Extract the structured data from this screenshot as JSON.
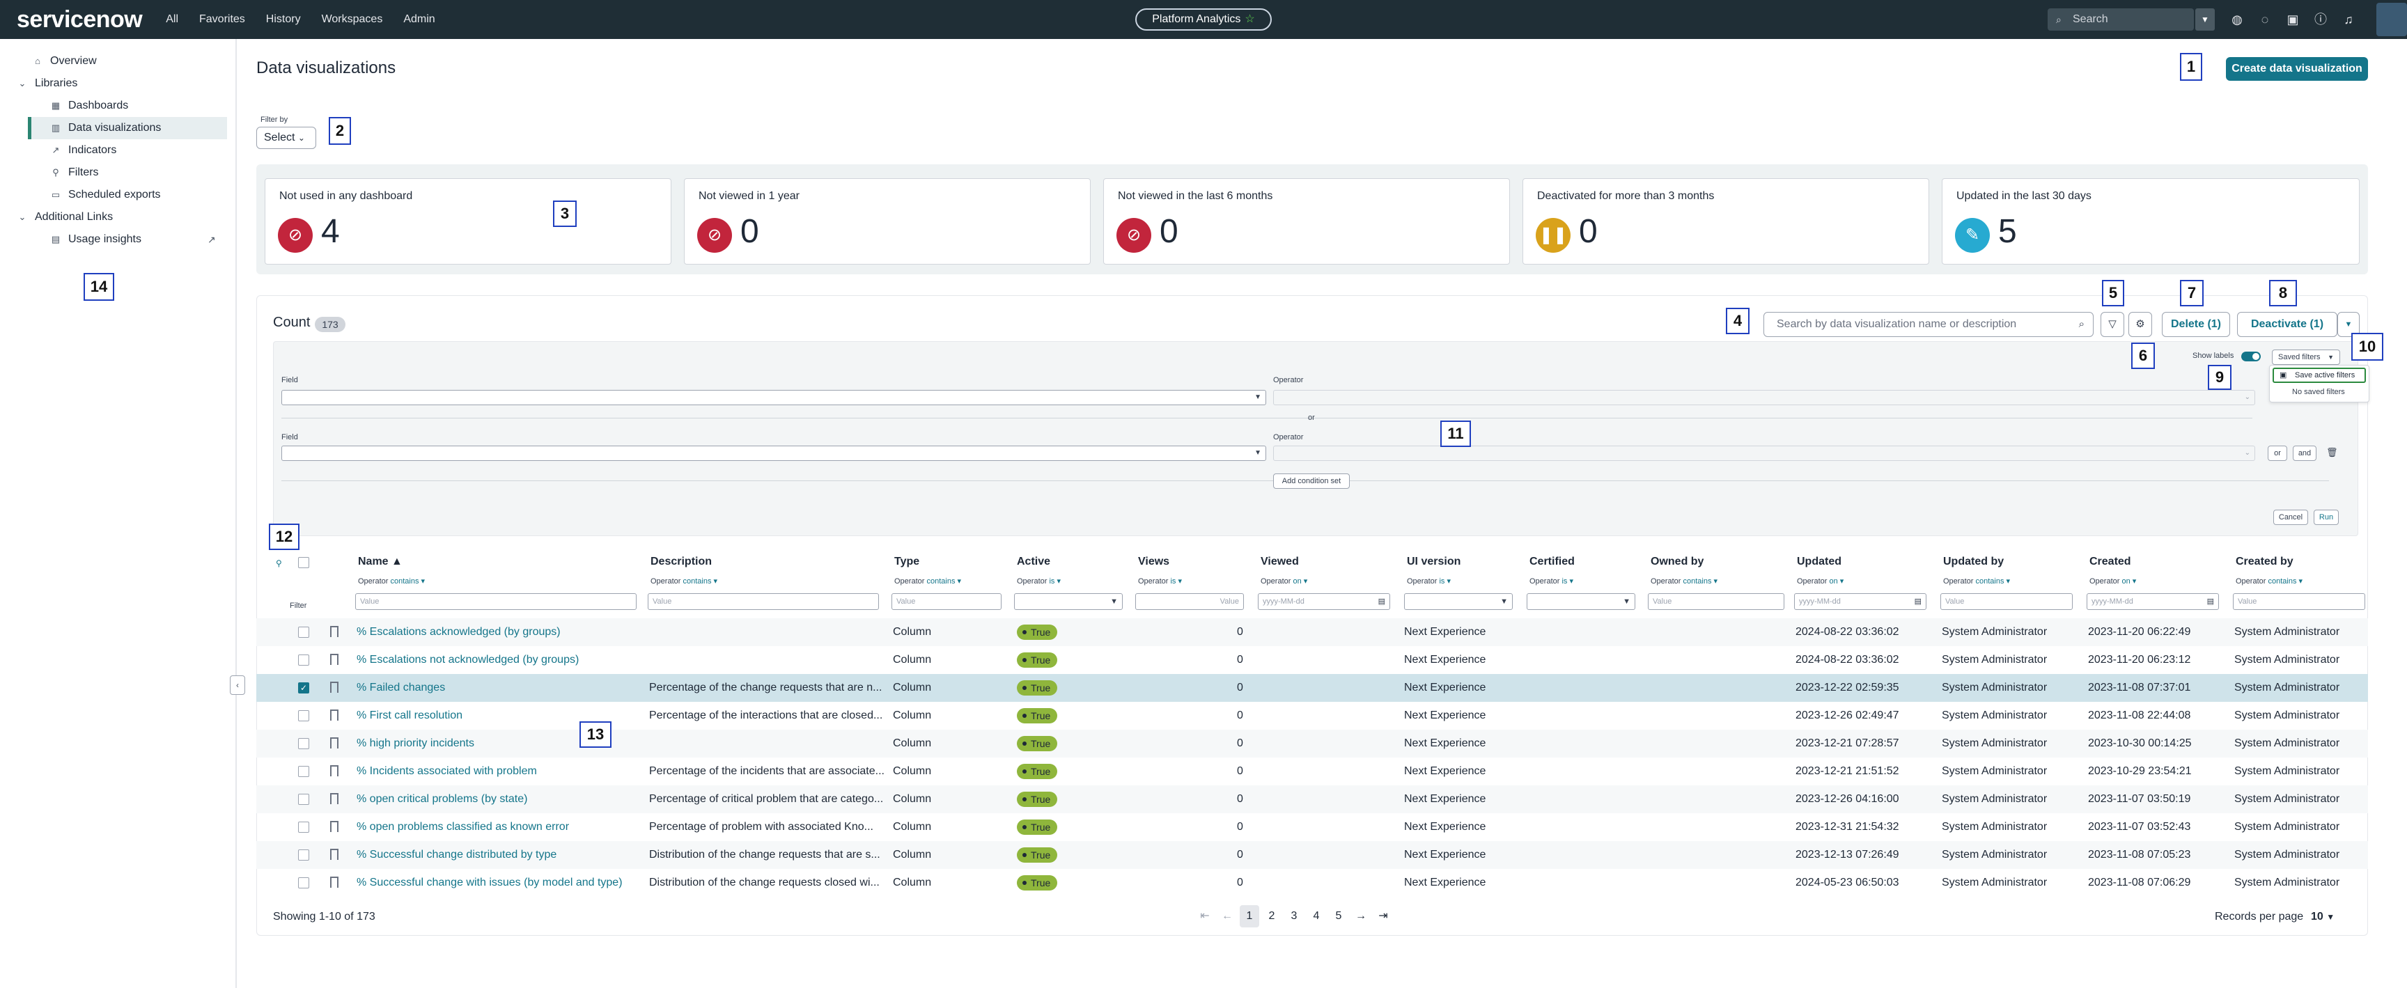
{
  "topbar": {
    "logo": "servicenow",
    "nav": [
      "All",
      "Favorites",
      "History",
      "Workspaces",
      "Admin"
    ],
    "scope": "Platform Analytics",
    "search_placeholder": "Search"
  },
  "sidebar": {
    "overview": "Overview",
    "libraries": "Libraries",
    "library_items": [
      "Dashboards",
      "Data visualizations",
      "Indicators",
      "Filters",
      "Scheduled exports"
    ],
    "additional_links": "Additional Links",
    "usage_insights": "Usage insights"
  },
  "page": {
    "title": "Data visualizations",
    "create_button": "Create data visualization",
    "filter_by_label": "Filter by",
    "filter_by_value": "Select"
  },
  "cards": [
    {
      "label": "Not used in any dashboard",
      "value": "4",
      "color": "#c2253c"
    },
    {
      "label": "Not viewed in 1 year",
      "value": "0",
      "color": "#c2253c"
    },
    {
      "label": "Not viewed in the last 6 months",
      "value": "0",
      "color": "#c2253c"
    },
    {
      "label": "Deactivated for more than 3 months",
      "value": "0",
      "color": "#d9a21b"
    },
    {
      "label": "Updated in the last 30 days",
      "value": "5",
      "color": "#27aad1"
    }
  ],
  "toolbar": {
    "count_label": "Count",
    "count_value": "173",
    "search_placeholder": "Search by data visualization name or description",
    "delete_label": "Delete (1)",
    "deactivate_label": "Deactivate (1)"
  },
  "filter_panel": {
    "field_label": "Field",
    "operator_label": "Operator",
    "or_label": "or",
    "or_button": "or",
    "and_button": "and",
    "add_condition_set": "Add condition set",
    "show_labels": "Show labels",
    "saved_filters": "Saved filters",
    "save_active_filters": "Save active filters",
    "no_saved_filters": "No saved filters",
    "cancel": "Cancel",
    "run": "Run"
  },
  "annotations": [
    "1",
    "2",
    "3",
    "4",
    "5",
    "6",
    "7",
    "8",
    "9",
    "10",
    "11",
    "12",
    "13",
    "14"
  ],
  "table": {
    "filter_label": "Filter",
    "operator_label": "Operator",
    "value_placeholder": "Value",
    "date_placeholder": "yyyy-MM-dd",
    "columns": [
      {
        "label": "Name ▲",
        "op": "contains"
      },
      {
        "label": "Description",
        "op": "contains"
      },
      {
        "label": "Type",
        "op": "contains"
      },
      {
        "label": "Active",
        "op": "is"
      },
      {
        "label": "Views",
        "op": "is"
      },
      {
        "label": "Viewed",
        "op": "on"
      },
      {
        "label": "UI version",
        "op": "is"
      },
      {
        "label": "Certified",
        "op": "is"
      },
      {
        "label": "Owned by",
        "op": "contains"
      },
      {
        "label": "Updated",
        "op": "on"
      },
      {
        "label": "Updated by",
        "op": "contains"
      },
      {
        "label": "Created",
        "op": "on"
      },
      {
        "label": "Created by",
        "op": "contains"
      }
    ],
    "rows": [
      {
        "name": "% Escalations acknowledged (by groups)",
        "desc": "",
        "type": "Column",
        "active": "True",
        "views": "0",
        "ui": "Next Experience",
        "updated": "2024-08-22 03:36:02",
        "updated_by": "System Administrator",
        "created": "2023-11-20 06:22:49",
        "created_by": "System Administrator"
      },
      {
        "name": "% Escalations not acknowledged (by groups)",
        "desc": "",
        "type": "Column",
        "active": "True",
        "views": "0",
        "ui": "Next Experience",
        "updated": "2024-08-22 03:36:02",
        "updated_by": "System Administrator",
        "created": "2023-11-20 06:23:12",
        "created_by": "System Administrator"
      },
      {
        "name": "% Failed changes",
        "desc": "Percentage of the change requests that are n...",
        "type": "Column",
        "active": "True",
        "views": "0",
        "ui": "Next Experience",
        "updated": "2023-12-22 02:59:35",
        "updated_by": "System Administrator",
        "created": "2023-11-08 07:37:01",
        "created_by": "System Administrator"
      },
      {
        "name": "% First call resolution",
        "desc": "Percentage of the interactions that are closed...",
        "type": "Column",
        "active": "True",
        "views": "0",
        "ui": "Next Experience",
        "updated": "2023-12-26 02:49:47",
        "updated_by": "System Administrator",
        "created": "2023-11-08 22:44:08",
        "created_by": "System Administrator"
      },
      {
        "name": "% high priority incidents",
        "desc": "",
        "type": "Column",
        "active": "True",
        "views": "0",
        "ui": "Next Experience",
        "updated": "2023-12-21 07:28:57",
        "updated_by": "System Administrator",
        "created": "2023-10-30 00:14:25",
        "created_by": "System Administrator"
      },
      {
        "name": "% Incidents associated with problem",
        "desc": "Percentage of the incidents that are associate...",
        "type": "Column",
        "active": "True",
        "views": "0",
        "ui": "Next Experience",
        "updated": "2023-12-21 21:51:52",
        "updated_by": "System Administrator",
        "created": "2023-10-29 23:54:21",
        "created_by": "System Administrator"
      },
      {
        "name": "% open critical problems (by state)",
        "desc": "Percentage of critical problem that are catego...",
        "type": "Column",
        "active": "True",
        "views": "0",
        "ui": "Next Experience",
        "updated": "2023-12-26 04:16:00",
        "updated_by": "System Administrator",
        "created": "2023-11-07 03:50:19",
        "created_by": "System Administrator"
      },
      {
        "name": "% open problems classified as known error",
        "desc": " Percentage of problem with associated Kno...",
        "type": "Column",
        "active": "True",
        "views": "0",
        "ui": "Next Experience",
        "updated": "2023-12-31 21:54:32",
        "updated_by": "System Administrator",
        "created": "2023-11-07 03:52:43",
        "created_by": "System Administrator"
      },
      {
        "name": "% Successful change distributed by type",
        "desc": "Distribution of the change requests that are s...",
        "type": "Column",
        "active": "True",
        "views": "0",
        "ui": "Next Experience",
        "updated": "2023-12-13 07:26:49",
        "updated_by": "System Administrator",
        "created": "2023-11-08 07:05:23",
        "created_by": "System Administrator"
      },
      {
        "name": "% Successful change with issues (by model and type)",
        "desc": "Distribution of the change requests closed wi...",
        "type": "Column",
        "active": "True",
        "views": "0",
        "ui": "Next Experience",
        "updated": "2024-05-23 06:50:03",
        "updated_by": "System Administrator",
        "created": "2023-11-08 07:06:29",
        "created_by": "System Administrator"
      }
    ]
  },
  "footer": {
    "showing": "Showing 1-10 of 173",
    "pages": [
      "1",
      "2",
      "3",
      "4",
      "5"
    ],
    "records_per_page_label": "Records per page",
    "records_per_page_value": "10"
  }
}
